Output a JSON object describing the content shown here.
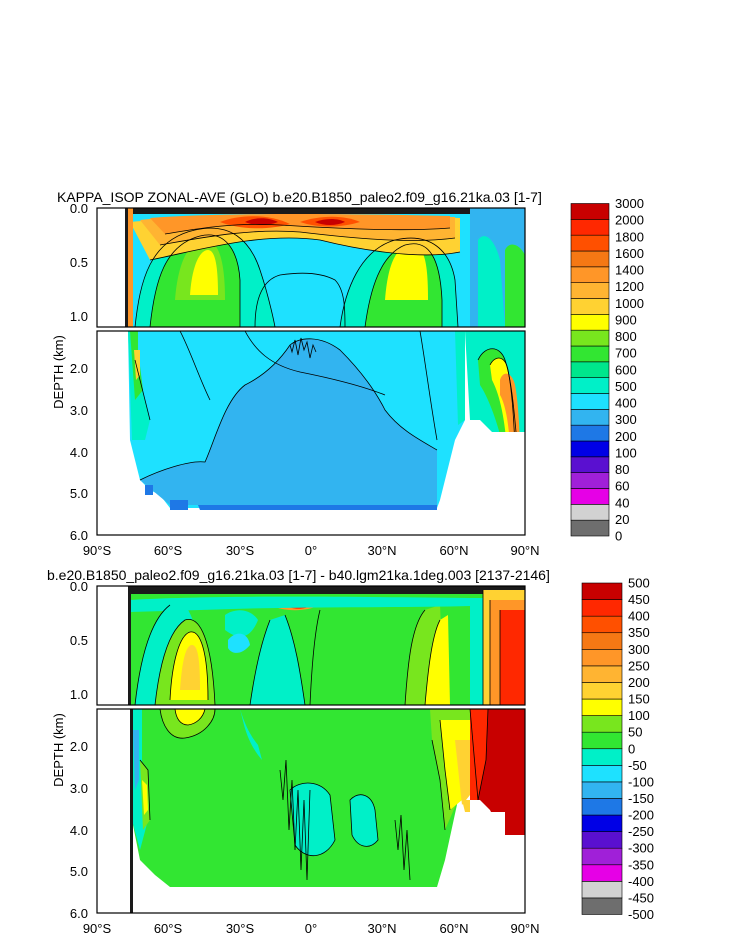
{
  "chart_data": [
    {
      "type": "heatmap",
      "title": "KAPPA_ISOP ZONAL-AVE (GLO) b.e20.B1850_paleo2.f09_g16.21ka.03 [1-7]",
      "xlabel": "",
      "ylabel": "DEPTH (km)",
      "x_ticks": [
        "90°S",
        "60°S",
        "30°S",
        "0°",
        "30°N",
        "60°N",
        "90°N"
      ],
      "y_ticks_upper": [
        "0.0",
        "0.5",
        "1.0"
      ],
      "y_ticks_lower": [
        "2.0",
        "3.0",
        "4.0",
        "5.0",
        "6.0"
      ],
      "y_range_km": [
        0,
        6
      ],
      "colorbar_labels": [
        "0",
        "20",
        "40",
        "60",
        "80",
        "100",
        "200",
        "300",
        "400",
        "500",
        "600",
        "700",
        "800",
        "900",
        "1000",
        "1200",
        "1400",
        "1600",
        "1800",
        "2000",
        "3000"
      ],
      "colorbar_colors": [
        "#6e6e6e",
        "#d2d2d2",
        "#e600e6",
        "#a020d8",
        "#5a10d0",
        "#0000e6",
        "#1e78e6",
        "#32b4f0",
        "#1ee1ff",
        "#00f0c8",
        "#00e68c",
        "#32e632",
        "#78e61e",
        "#ffff00",
        "#ffd232",
        "#ffb432",
        "#ff9628",
        "#f57814",
        "#ff5000",
        "#ff2800",
        "#c80000"
      ]
    },
    {
      "type": "heatmap",
      "title": "b.e20.B1850_paleo2.f09_g16.21ka.03 [1-7] - b40.lgm21ka.1deg.003 [2137-2146]",
      "xlabel": "",
      "ylabel": "DEPTH (km)",
      "x_ticks": [
        "90°S",
        "60°S",
        "30°S",
        "0°",
        "30°N",
        "60°N",
        "90°N"
      ],
      "y_ticks_upper": [
        "0.0",
        "0.5",
        "1.0"
      ],
      "y_ticks_lower": [
        "2.0",
        "3.0",
        "4.0",
        "5.0",
        "6.0"
      ],
      "y_range_km": [
        0,
        6
      ],
      "colorbar_labels": [
        "-500",
        "-450",
        "-400",
        "-350",
        "-300",
        "-250",
        "-200",
        "-150",
        "-100",
        "-50",
        "0",
        "50",
        "100",
        "150",
        "200",
        "250",
        "300",
        "350",
        "400",
        "450",
        "500"
      ],
      "colorbar_colors": [
        "#6e6e6e",
        "#d2d2d2",
        "#e600e6",
        "#a020d8",
        "#5a10d0",
        "#0000e6",
        "#1e78e6",
        "#32b4f0",
        "#1ee1ff",
        "#00f0c8",
        "#32e632",
        "#78e61e",
        "#ffff00",
        "#ffd232",
        "#ffb432",
        "#ff9628",
        "#f57814",
        "#ff5000",
        "#ff2800",
        "#c80000"
      ]
    }
  ]
}
